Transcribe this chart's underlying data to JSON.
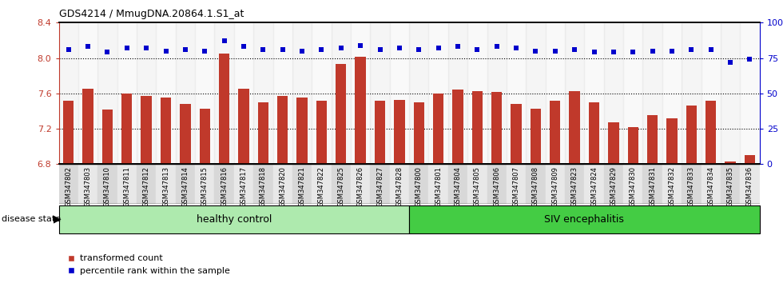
{
  "title": "GDS4214 / MmugDNA.20864.1.S1_at",
  "samples": [
    "GSM347802",
    "GSM347803",
    "GSM347810",
    "GSM347811",
    "GSM347812",
    "GSM347813",
    "GSM347814",
    "GSM347815",
    "GSM347816",
    "GSM347817",
    "GSM347818",
    "GSM347820",
    "GSM347821",
    "GSM347822",
    "GSM347825",
    "GSM347826",
    "GSM347827",
    "GSM347828",
    "GSM347800",
    "GSM347801",
    "GSM347804",
    "GSM347805",
    "GSM347806",
    "GSM347807",
    "GSM347808",
    "GSM347809",
    "GSM347823",
    "GSM347824",
    "GSM347829",
    "GSM347830",
    "GSM347831",
    "GSM347832",
    "GSM347833",
    "GSM347834",
    "GSM347835",
    "GSM347836"
  ],
  "bar_values": [
    7.52,
    7.65,
    7.42,
    7.6,
    7.57,
    7.55,
    7.48,
    7.43,
    8.05,
    7.65,
    7.5,
    7.57,
    7.55,
    7.52,
    7.93,
    8.01,
    7.52,
    7.53,
    7.5,
    7.6,
    7.64,
    7.63,
    7.62,
    7.48,
    7.43,
    7.52,
    7.63,
    7.5,
    7.27,
    7.22,
    7.35,
    7.32,
    7.46,
    7.52,
    6.83,
    6.9
  ],
  "percentile_values": [
    81,
    83,
    79,
    82,
    82,
    80,
    81,
    80,
    87,
    83,
    81,
    81,
    80,
    81,
    82,
    84,
    81,
    82,
    81,
    82,
    83,
    81,
    83,
    82,
    80,
    80,
    81,
    79,
    79,
    79,
    80,
    80,
    81,
    81,
    72,
    74
  ],
  "healthy_control_count": 18,
  "ylim_left": [
    6.8,
    8.4
  ],
  "ylim_right": [
    0,
    100
  ],
  "yticks_left": [
    6.8,
    7.2,
    7.6,
    8.0,
    8.4
  ],
  "yticks_right": [
    0,
    25,
    50,
    75,
    100
  ],
  "ytick_labels_right": [
    "0",
    "25",
    "50",
    "75",
    "100%"
  ],
  "bar_color": "#C0392B",
  "dot_color": "#0000CC",
  "healthy_color": "#AEEAAE",
  "siv_color": "#44CC44",
  "label_bar": "transformed count",
  "label_dot": "percentile rank within the sample",
  "group1_label": "healthy control",
  "group2_label": "SIV encephalitis",
  "disease_state_label": "disease state"
}
